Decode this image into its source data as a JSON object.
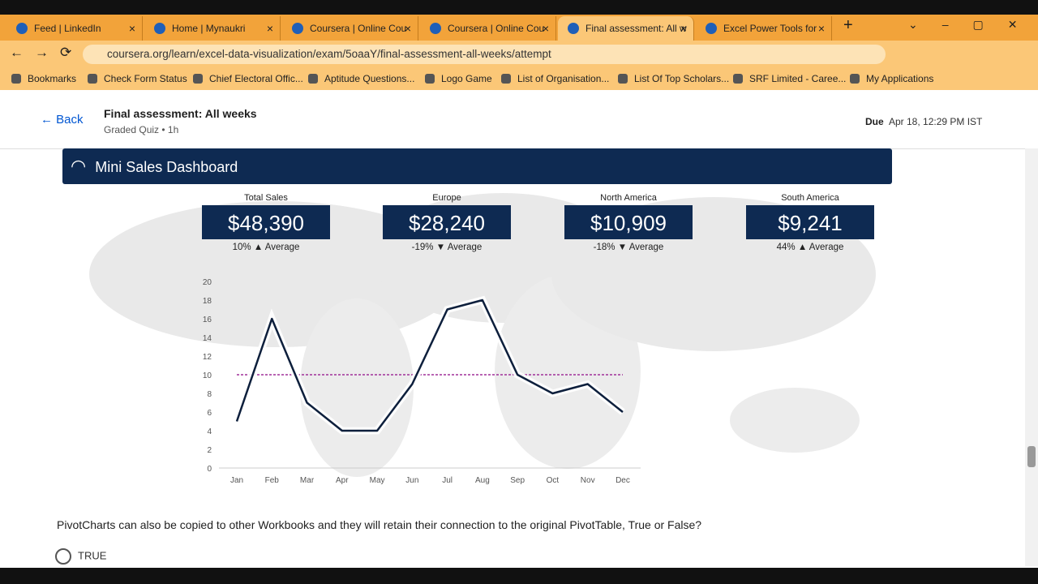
{
  "browser": {
    "tabs": [
      "Feed | LinkedIn",
      "Home | Mynaukri",
      "Coursera | Online Cou",
      "Coursera | Online Cou",
      "Final assessment: All w",
      "Excel Power Tools for"
    ],
    "active_tab": 4,
    "url": "coursera.org/learn/excel-data-visualization/exam/5oaaY/final-assessment-all-weeks/attempt",
    "bookmarks": [
      "Bookmarks",
      "Check Form Status",
      "Chief Electoral Offic...",
      "Aptitude Questions...",
      "Logo Game",
      "List of Organisation...",
      "List Of Top Scholars...",
      "SRF Limited - Caree...",
      "My Applications"
    ]
  },
  "header": {
    "back": "Back",
    "title": "Final assessment: All weeks",
    "subtitle": "Graded Quiz • 1h",
    "due_label": "Due",
    "due": "Apr 18, 12:29 PM IST"
  },
  "dashboard": {
    "title": "Mini Sales Dashboard",
    "kpis": [
      {
        "label": "Total Sales",
        "value": "$48,390",
        "change": "10%",
        "arrow": "▲",
        "note": "Average"
      },
      {
        "label": "Europe",
        "value": "$28,240",
        "change": "-19%",
        "arrow": "▼",
        "note": "Average"
      },
      {
        "label": "North America",
        "value": "$10,909",
        "change": "-18%",
        "arrow": "▼",
        "note": "Average"
      },
      {
        "label": "South America",
        "value": "$9,241",
        "change": "44%",
        "arrow": "▲",
        "note": "Average"
      }
    ]
  },
  "chart_data": {
    "type": "line",
    "categories": [
      "Jan",
      "Feb",
      "Mar",
      "Apr",
      "May",
      "Jun",
      "Jul",
      "Aug",
      "Sep",
      "Oct",
      "Nov",
      "Dec"
    ],
    "values": [
      5,
      16,
      7,
      4,
      4,
      9,
      17,
      18,
      10,
      8,
      9,
      6
    ],
    "color": "#0d1f3c",
    "reference_line": {
      "value": 10,
      "color": "#a0309a"
    },
    "ylim": [
      0,
      20
    ],
    "yticks": [
      0,
      2,
      4,
      6,
      8,
      10,
      12,
      14,
      16,
      18,
      20
    ]
  },
  "question": {
    "text": "PivotCharts can also be copied to other Workbooks and they will retain their connection to the original PivotTable, True or False?",
    "options": [
      "TRUE"
    ]
  }
}
